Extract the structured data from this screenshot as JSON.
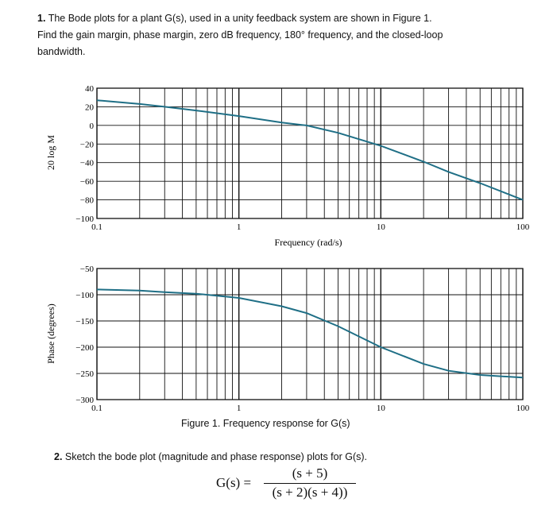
{
  "problem1": {
    "number": "1.",
    "line1": "The Bode plots for a plant G(s), used in a unity feedback system are shown in Figure 1.",
    "line2": "Find the gain margin, phase margin, zero dB frequency, 180° frequency, and the closed-loop",
    "line3": "bandwidth."
  },
  "figure": {
    "caption": "Figure 1. Frequency response for G(s)",
    "magnitude_plot": {
      "ylabel": "20 log M",
      "xlabel": "Frequency (rad/s)",
      "yticks": [
        "40",
        "20",
        "0",
        "−20",
        "−40",
        "−60",
        "−80",
        "−100"
      ],
      "xticks": [
        "0.1",
        "1",
        "10",
        "100"
      ]
    },
    "phase_plot": {
      "ylabel": "Phase (degrees)",
      "yticks": [
        "−50",
        "−100",
        "−150",
        "−200",
        "−250",
        "−300"
      ],
      "xticks": [
        "0.1",
        "1",
        "10",
        "100"
      ]
    }
  },
  "chart_data": [
    {
      "type": "line",
      "x_scale": "log",
      "xlim": [
        0.1,
        100
      ],
      "ylim": [
        -100,
        40
      ],
      "ylabel": "20 log M",
      "xlabel": "Frequency (rad/s)",
      "grid": true,
      "x": [
        0.1,
        0.2,
        0.3,
        0.5,
        1,
        2,
        3,
        5,
        10,
        20,
        30,
        50,
        100
      ],
      "y": [
        27,
        23,
        20,
        16,
        10,
        3,
        0,
        -8,
        -22,
        -39,
        -50,
        -62,
        -80
      ]
    },
    {
      "type": "line",
      "x_scale": "log",
      "xlim": [
        0.1,
        100
      ],
      "ylim": [
        -300,
        -50
      ],
      "ylabel": "Phase (degrees)",
      "grid": true,
      "x": [
        0.1,
        0.2,
        0.3,
        0.5,
        1,
        2,
        3,
        5,
        10,
        20,
        30,
        50,
        100
      ],
      "y": [
        -90,
        -92,
        -95,
        -98,
        -106,
        -122,
        -135,
        -160,
        -200,
        -232,
        -245,
        -253,
        -258
      ]
    }
  ],
  "problem2": {
    "number": "2.",
    "text": "Sketch the bode plot (magnitude and phase response) plots for G(s).",
    "lhs": "G(s) =",
    "numerator": "(s + 5)",
    "denominator": "(s + 2)(s + 4))"
  }
}
